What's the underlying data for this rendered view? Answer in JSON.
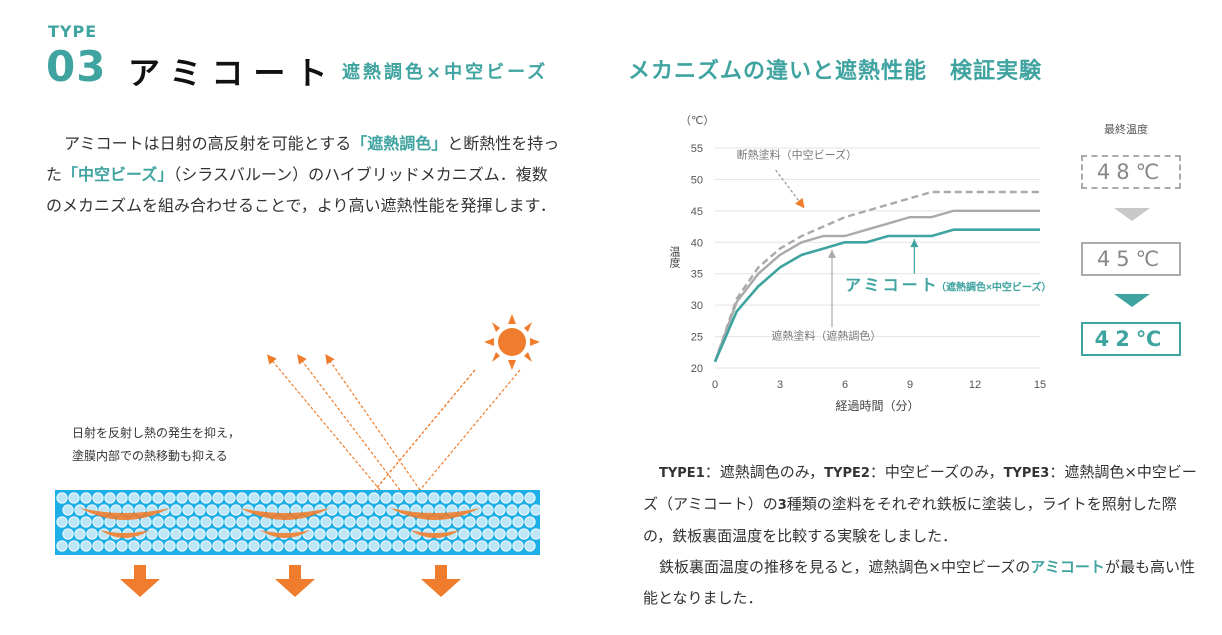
{
  "header": {
    "type_label": "TYPE",
    "type_number": "03",
    "product_name": "アミコート",
    "product_sub": "遮熱調色×中空ビーズ",
    "right_title": "メカニズムの違いと遮熱性能　検証実験"
  },
  "intro": {
    "p1": "アミコートは日射の高反射を可能とする",
    "h1": "「遮熱調色」",
    "p2": "と断熱性を持った",
    "h2": "「中空ビーズ」",
    "p3": "（シラスバルーン）のハイブリッドメカニズム．複数のメカニズムを組み合わせることで，より高い遮熱性能を発揮します．"
  },
  "diagram": {
    "caption_line1": "日射を反射し熱の発生を抑え，",
    "caption_line2": "塗膜内部での熱移動も抑える",
    "colors": {
      "panel": "#1eaee8",
      "beads": "#bfe6f7",
      "arrow": "#ef7d2d",
      "sun": "#ef7d2d"
    }
  },
  "description": {
    "t1": "TYPE1",
    "d1": "：遮熱調色のみ，",
    "t2": "TYPE2",
    "d2": "：中空ビーズのみ，",
    "t3": "TYPE3",
    "d3": "：遮熱調色×中空ビーズ（アミコート）の",
    "n3": "3",
    "d4": "種類の塗料をそれぞれ鉄板に塗装し，ライトを照射した際の，鉄板裏面温度を比較する実験をしました．",
    "p2a": "鉄板裏面温度の推移を見ると，遮熱調色×中空ビーズの",
    "p2hl": "アミコート",
    "p2b": "が最も高い性能となりました．"
  },
  "final_temp": {
    "label": "最終温度",
    "box1": "48℃",
    "box2": "45℃",
    "box3": "42℃"
  },
  "chart_data": {
    "type": "line",
    "unit_label": "（℃）",
    "xlabel": "経過時間（分）",
    "ylabel": "温度",
    "xlim": [
      0,
      15
    ],
    "ylim": [
      20,
      55
    ],
    "xticks": [
      0,
      3,
      6,
      9,
      12,
      15
    ],
    "yticks": [
      20,
      25,
      30,
      35,
      40,
      45,
      50,
      55
    ],
    "grid": true,
    "series": [
      {
        "name": "断熱塗料（中空ビーズ）",
        "color": "#aaaaaa",
        "dashed": true,
        "x": [
          0,
          1,
          2,
          3,
          4,
          5,
          6,
          7,
          8,
          9,
          10,
          11,
          12,
          13,
          14,
          15
        ],
        "y": [
          21,
          31,
          36,
          39,
          41,
          42.5,
          44,
          45,
          46,
          47,
          48,
          48,
          48,
          48,
          48,
          48
        ]
      },
      {
        "name": "遮熱塗料（遮熱調色）",
        "color": "#aaaaaa",
        "dashed": false,
        "x": [
          0,
          1,
          2,
          3,
          4,
          5,
          6,
          7,
          8,
          9,
          10,
          11,
          12,
          13,
          14,
          15
        ],
        "y": [
          21,
          30.5,
          35,
          38,
          40,
          41,
          41,
          42,
          43,
          44,
          44,
          45,
          45,
          45,
          45,
          45
        ]
      },
      {
        "name": "アミコート",
        "name_suffix": "（遮熱調色×中空ビーズ）",
        "color": "#3fa3a0",
        "dashed": false,
        "x": [
          0,
          1,
          2,
          3,
          4,
          5,
          6,
          7,
          8,
          9,
          10,
          11,
          12,
          13,
          14,
          15
        ],
        "y": [
          21,
          29,
          33,
          36,
          38,
          39,
          40,
          40,
          41,
          41,
          41,
          42,
          42,
          42,
          42,
          42
        ]
      }
    ]
  }
}
